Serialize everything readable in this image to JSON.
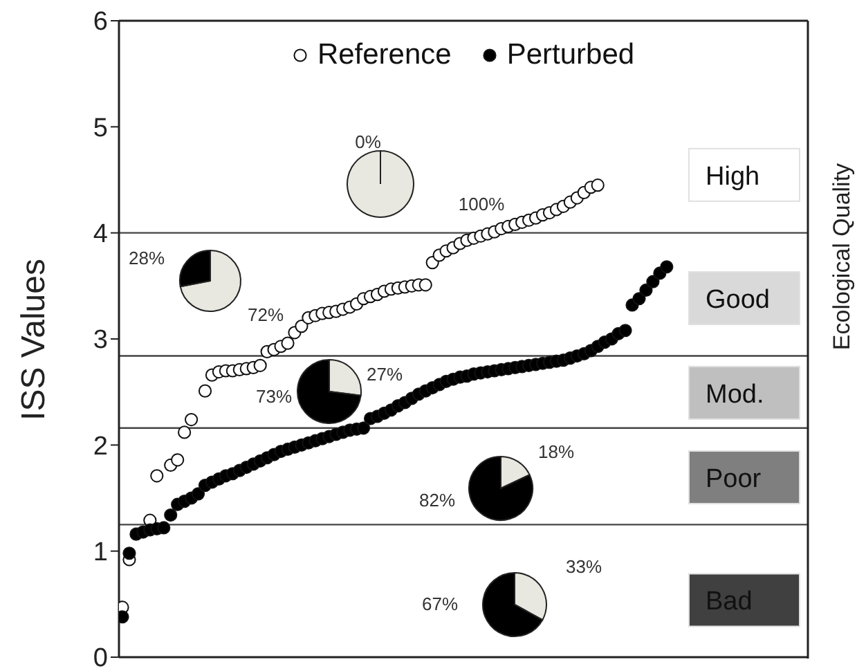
{
  "chart_data": [
    {
      "type": "scatter",
      "ylabel": "ISS Values",
      "y2label": "Ecological Quality",
      "categories": [
        null,
        null,
        null,
        null,
        null,
        null,
        null,
        null,
        null,
        null,
        null,
        null,
        null,
        null,
        null,
        null,
        null,
        null,
        null,
        null,
        null,
        null,
        null,
        null,
        null,
        null,
        null,
        null,
        null,
        null,
        null,
        null,
        null,
        null,
        null,
        null,
        null,
        null,
        null,
        null,
        null,
        null,
        null,
        null,
        null,
        null,
        null,
        null,
        null,
        null,
        null,
        null,
        null,
        null,
        null,
        null,
        null,
        null,
        null,
        null,
        null,
        null,
        null,
        null,
        null,
        null,
        null,
        null,
        null,
        null,
        null,
        null,
        null,
        null,
        null,
        null,
        null,
        null,
        null,
        null,
        null,
        null,
        null,
        null,
        null,
        null,
        null,
        null,
        null,
        null,
        null,
        null,
        null,
        null,
        null,
        null,
        null,
        null,
        null,
        null
      ],
      "series": [
        {
          "name": "Reference",
          "color": "#ffffff",
          "values": [
            0.47,
            0.92,
            null,
            null,
            1.29,
            1.71,
            null,
            1.81,
            1.86,
            2.12,
            2.24,
            null,
            2.51,
            2.66,
            2.69,
            2.7,
            2.7,
            2.71,
            2.72,
            2.73,
            2.75,
            2.88,
            2.9,
            2.93,
            2.96,
            3.06,
            3.12,
            3.2,
            3.22,
            3.24,
            3.25,
            3.26,
            3.28,
            3.3,
            3.33,
            3.38,
            3.4,
            3.42,
            3.45,
            3.47,
            3.48,
            3.49,
            3.5,
            3.51,
            3.51,
            3.72,
            3.79,
            3.83,
            3.86,
            3.9,
            3.93,
            3.95,
            3.97,
            3.99,
            4.01,
            4.04,
            4.06,
            4.08,
            4.1,
            4.12,
            4.14,
            4.17,
            4.19,
            4.22,
            4.25,
            4.29,
            4.33,
            4.38,
            4.43,
            4.45,
            null,
            null,
            null,
            null,
            null,
            null,
            null,
            null,
            null,
            null,
            null,
            null,
            null,
            null,
            null,
            null,
            null,
            null,
            null,
            null,
            null,
            null,
            null,
            null,
            null,
            null,
            null,
            null,
            null,
            null
          ]
        },
        {
          "name": "Perturbed",
          "color": "#000000",
          "values": [
            0.38,
            0.98,
            1.16,
            1.18,
            1.2,
            1.21,
            1.22,
            1.34,
            1.44,
            1.47,
            1.5,
            1.54,
            1.62,
            1.65,
            1.68,
            1.71,
            1.73,
            1.76,
            1.79,
            1.82,
            1.85,
            1.88,
            1.91,
            1.94,
            1.96,
            1.98,
            2.0,
            2.02,
            2.04,
            2.06,
            2.08,
            2.1,
            2.12,
            2.14,
            2.15,
            2.16,
            2.25,
            2.27,
            2.3,
            2.33,
            2.37,
            2.4,
            2.44,
            2.48,
            2.51,
            2.54,
            2.57,
            2.6,
            2.62,
            2.64,
            2.65,
            2.67,
            2.68,
            2.69,
            2.7,
            2.71,
            2.72,
            2.73,
            2.74,
            2.75,
            2.76,
            2.77,
            2.78,
            2.79,
            2.8,
            2.82,
            2.84,
            2.86,
            2.89,
            2.93,
            2.97,
            3.0,
            3.05,
            3.08,
            3.32,
            3.38,
            3.46,
            3.54,
            3.62,
            3.68,
            null,
            null,
            null,
            null,
            null,
            null,
            null,
            null,
            null,
            null,
            null,
            null,
            null,
            null,
            null,
            null,
            null,
            null,
            null,
            null
          ]
        }
      ],
      "ylim": [
        0,
        6
      ],
      "yticks": [
        0,
        1,
        2,
        3,
        4,
        5,
        6
      ],
      "ref_lines": [
        {
          "axis": "y",
          "value": 4
        },
        {
          "axis": "y",
          "value": 2.84
        },
        {
          "axis": "y",
          "value": 2.16
        },
        {
          "axis": "y",
          "value": 1.25
        }
      ],
      "annotations": [
        "High",
        "Good",
        "Mod.",
        "Poor",
        "Bad"
      ],
      "legend": "top",
      "marker": "circle"
    },
    {
      "type": "pie",
      "categories": [
        null,
        null
      ],
      "values": [
        100,
        0
      ],
      "colors": [
        "#e8e8e0",
        "#000000"
      ],
      "value_labels": [
        "100%",
        "0%"
      ]
    },
    {
      "type": "pie",
      "categories": [
        null,
        null
      ],
      "values": [
        72,
        28
      ],
      "colors": [
        "#e8e8e0",
        "#000000"
      ],
      "value_labels": [
        "72%",
        "28%"
      ]
    },
    {
      "type": "pie",
      "categories": [
        null,
        null
      ],
      "values": [
        27,
        73
      ],
      "colors": [
        "#e8e8e0",
        "#000000"
      ],
      "value_labels": [
        "27%",
        "73%"
      ]
    },
    {
      "type": "pie",
      "categories": [
        null,
        null
      ],
      "values": [
        18,
        82
      ],
      "colors": [
        "#e8e8e0",
        "#000000"
      ],
      "value_labels": [
        "18%",
        "82%"
      ]
    },
    {
      "type": "pie",
      "categories": [
        null,
        null
      ],
      "values": [
        33,
        67
      ],
      "colors": [
        "#e8e8e0",
        "#000000"
      ],
      "value_labels": [
        "33%",
        "67%"
      ]
    }
  ]
}
